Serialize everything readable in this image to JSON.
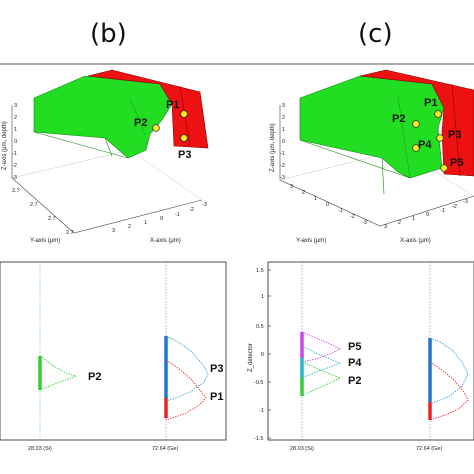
{
  "panels": {
    "b": {
      "label": "(b)"
    },
    "c": {
      "label": "(c)"
    }
  },
  "surface_plot": {
    "z_axis_label": "Z-axis (μm, depth)",
    "y_axis_label": "Y-axis (μm)",
    "x_axis_label": "X-axis (μm)",
    "z_ticks": [
      "3",
      "2",
      "1",
      "0",
      "-1",
      "-2",
      "-3"
    ],
    "y_ticks_b": [
      "2.7",
      "2.7",
      "2.7",
      "2.7"
    ],
    "x_ticks": [
      "3",
      "2",
      "1",
      "0",
      "-1",
      "-2",
      "-3"
    ],
    "y_ticks_c": [
      "3",
      "2",
      "1",
      "0",
      "-1",
      "-2",
      "-3"
    ],
    "colors": {
      "green": "#22dd22",
      "red": "#ee1111",
      "point": "#ffee22"
    }
  },
  "points_b": [
    "P1",
    "P2",
    "P3"
  ],
  "points_c": [
    "P1",
    "P2",
    "P3",
    "P4",
    "P5"
  ],
  "chart_data": [
    {
      "type": "line",
      "panel": "b",
      "ylabel": "",
      "x_ticks": [
        "28.03 (Si)",
        "72.64 (Ge)"
      ],
      "peak_labels": [
        "P2",
        "P3",
        "P1"
      ],
      "colors": {
        "si_line": "#33cc33",
        "ge_line": "#6688aa",
        "P2": "#33cc33",
        "P3": "#3399dd",
        "P1": "#ee2222"
      }
    },
    {
      "type": "line",
      "panel": "c",
      "ylabel": "Z_detector",
      "ylim": [
        -1.5,
        1.5
      ],
      "y_ticks": [
        "1.5",
        "1",
        "0.5",
        "0",
        "-0.5",
        "-1",
        "-1.5"
      ],
      "x_ticks": [
        "28.03 (Si)",
        "72.64 (Ge)"
      ],
      "peak_labels": [
        "P5",
        "P4",
        "P2"
      ],
      "colors": {
        "P5": "#cc44ee",
        "P4": "#22bbcc",
        "P2": "#33cc33"
      }
    }
  ]
}
